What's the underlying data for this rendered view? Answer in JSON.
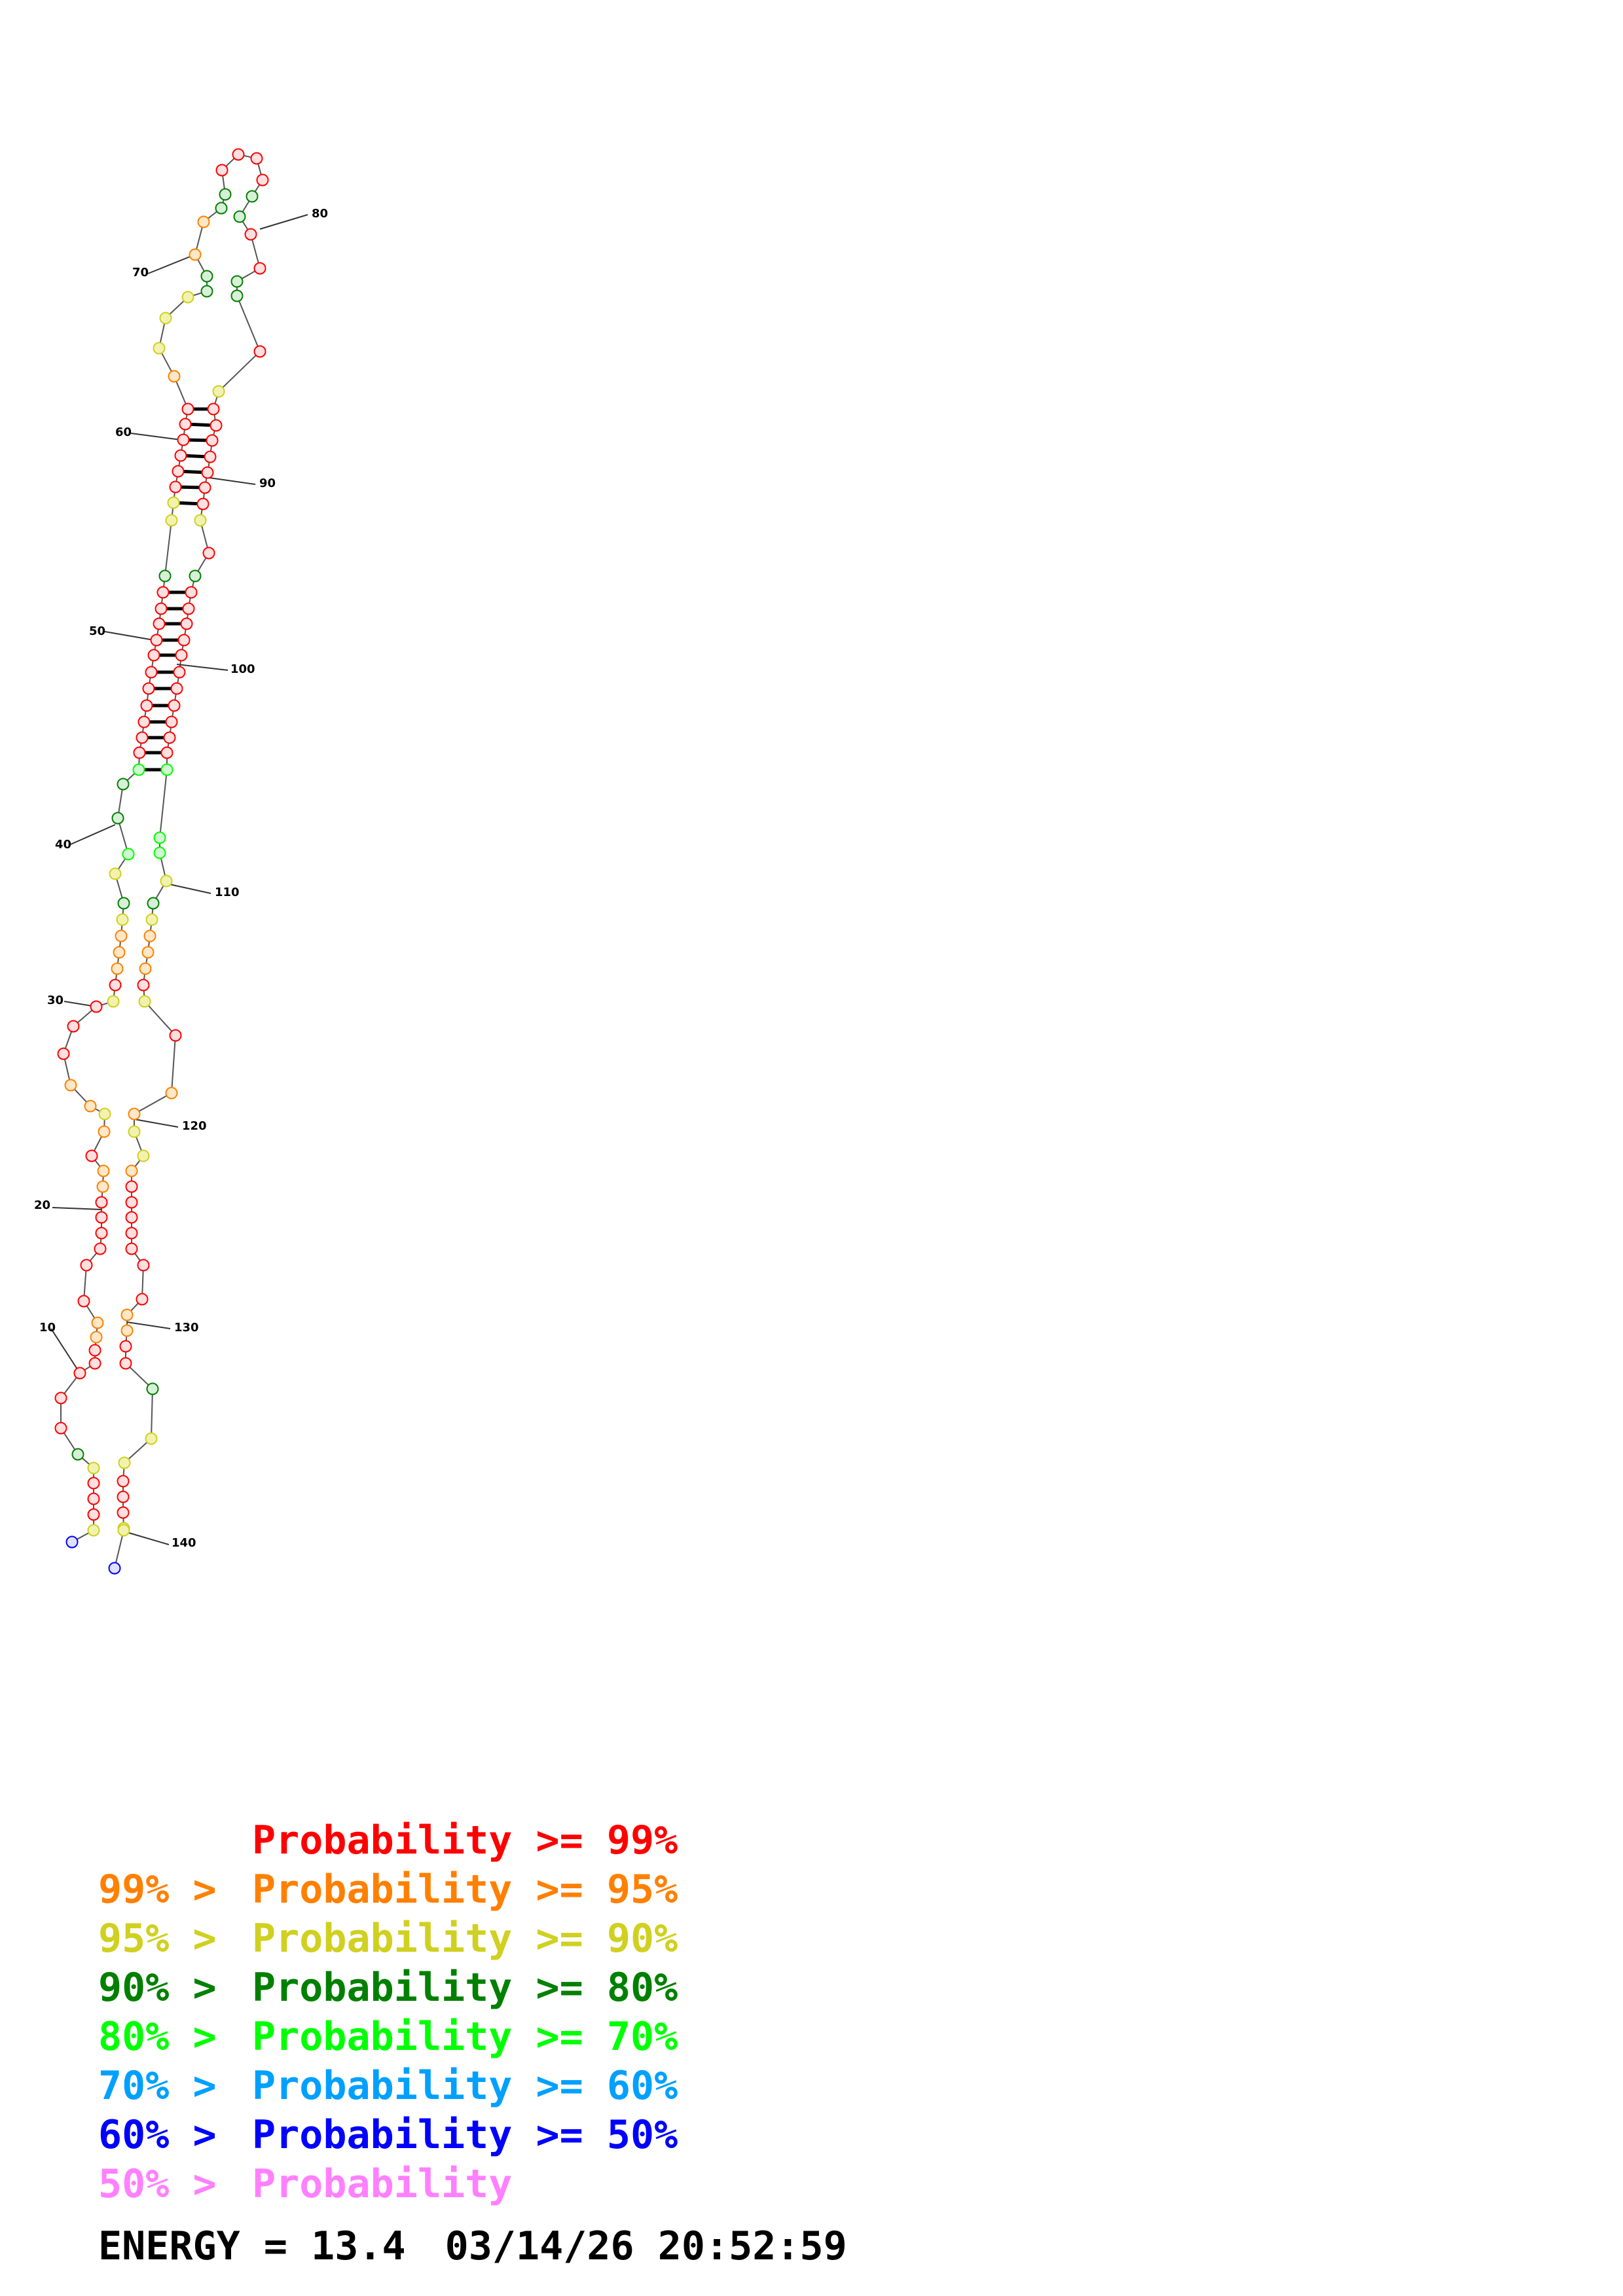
{
  "diagram": {
    "type": "rna-secondary-structure",
    "position_labels": [
      "10",
      "20",
      "30",
      "40",
      "50",
      "60",
      "70",
      "80",
      "90",
      "100",
      "110",
      "120",
      "130",
      "140"
    ]
  },
  "legend": {
    "entries": [
      {
        "prefix": "",
        "text": "Probability >= 99%",
        "color": "#ff0000"
      },
      {
        "prefix": "99% >",
        "text": "Probability >= 95%",
        "color": "#ff8000"
      },
      {
        "prefix": "95% >",
        "text": "Probability >= 90%",
        "color": "#d0d020"
      },
      {
        "prefix": "90% >",
        "text": "Probability >= 80%",
        "color": "#008000"
      },
      {
        "prefix": "80% >",
        "text": "Probability >= 70%",
        "color": "#00ff00"
      },
      {
        "prefix": "70% >",
        "text": "Probability >= 60%",
        "color": "#00a0ff"
      },
      {
        "prefix": "60% >",
        "text": "Probability >= 50%",
        "color": "#0000ff"
      },
      {
        "prefix": "50% >",
        "text": "Probability",
        "color": "#ff80ff"
      }
    ]
  },
  "energy": {
    "label": "ENERGY = 13.4",
    "timestamp": "03/14/26 20:52:59"
  }
}
